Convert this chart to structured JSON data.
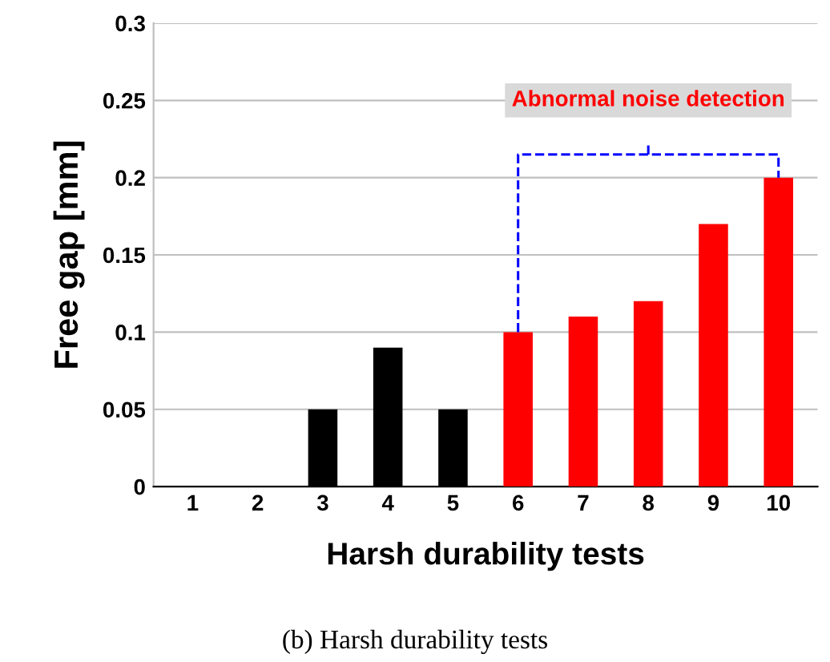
{
  "chart_data": {
    "type": "bar",
    "categories": [
      "1",
      "2",
      "3",
      "4",
      "5",
      "6",
      "7",
      "8",
      "9",
      "10"
    ],
    "values": [
      0,
      0,
      0.05,
      0.09,
      0.05,
      0.1,
      0.11,
      0.12,
      0.17,
      0.2
    ],
    "colors": [
      "#000000",
      "#000000",
      "#000000",
      "#000000",
      "#000000",
      "#ff0000",
      "#ff0000",
      "#ff0000",
      "#ff0000",
      "#ff0000"
    ],
    "xlabel": "Harsh durability tests",
    "ylabel": "Free gap [mm]",
    "ylim": [
      0,
      0.3
    ],
    "yticks": [
      0,
      0.05,
      0.1,
      0.15,
      0.2,
      0.25,
      0.3
    ],
    "grid": "y",
    "annotations": [
      "Abnormal noise detection",
      "(b) Harsh durability tests"
    ]
  }
}
